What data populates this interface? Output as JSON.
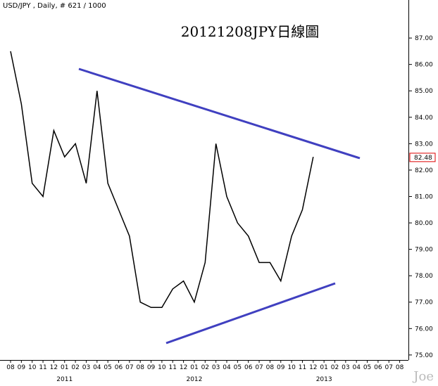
{
  "chart_data": {
    "type": "line",
    "title": "USD/JPY , Daily, # 621 / 1000",
    "annotation": "20121208JPY日線圖",
    "categories": [
      "08",
      "09",
      "10",
      "11",
      "12",
      "01",
      "02",
      "03",
      "04",
      "05",
      "06",
      "07",
      "08",
      "09",
      "10",
      "11",
      "12",
      "01",
      "02",
      "03",
      "04",
      "05",
      "06",
      "07",
      "08",
      "09",
      "10",
      "11",
      "12",
      "01",
      "02",
      "03",
      "04",
      "05",
      "06",
      "07",
      "08"
    ],
    "years": [
      "2011",
      "2012",
      "2013"
    ],
    "color": "#000000",
    "values": [
      86.5,
      84.5,
      81.5,
      81,
      83.5,
      82.5,
      83,
      81.5,
      85,
      81.5,
      80.5,
      79.5,
      77,
      76.8,
      76.8,
      77.5,
      77.8,
      77,
      78.5,
      83,
      81,
      80,
      79.5,
      78.5,
      78.5,
      77.8,
      79.5,
      80.5,
      82.5,
      null,
      null,
      null,
      null,
      null,
      null,
      null,
      null
    ],
    "last_price": 82.48,
    "ylim": [
      74.81,
      88.44
    ],
    "yticks": [
      {
        "value": 75,
        "label": "75.00"
      },
      {
        "value": 76,
        "label": "76.00"
      },
      {
        "value": 77,
        "label": "77.00"
      },
      {
        "value": 78,
        "label": "78.00"
      },
      {
        "value": 79,
        "label": "79.00"
      },
      {
        "value": 80,
        "label": "80.00"
      },
      {
        "value": 81,
        "label": "81.00"
      },
      {
        "value": 82,
        "label": "82.00"
      },
      {
        "value": 83,
        "label": "83.00"
      },
      {
        "value": 84,
        "label": "84.00"
      },
      {
        "value": 85,
        "label": "85.00"
      },
      {
        "value": 86,
        "label": "86.00"
      },
      {
        "value": 87,
        "label": "87.00"
      }
    ],
    "watermark": "Joe"
  }
}
